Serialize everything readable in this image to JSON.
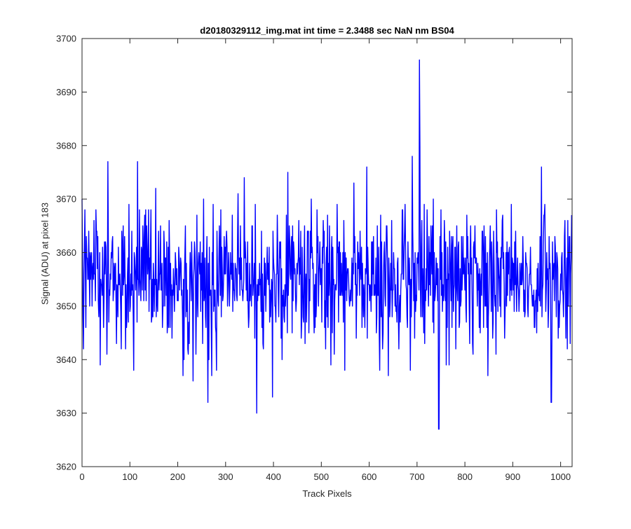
{
  "chart_data": {
    "type": "line",
    "title": "d20180329112_img.mat int time = 2.3488 sec  NaN nm BS04",
    "xlabel": "Track Pixels",
    "ylabel": "Signal (ADU) at pixel 183",
    "xlim": [
      0,
      1024
    ],
    "ylim": [
      3620,
      3700
    ],
    "xticks": [
      0,
      100,
      200,
      300,
      400,
      500,
      600,
      700,
      800,
      900,
      1000
    ],
    "yticks": [
      3620,
      3630,
      3640,
      3650,
      3660,
      3670,
      3680,
      3690,
      3700
    ],
    "grid": false,
    "series_color": "#0000ff",
    "series": [
      {
        "n_points": 1024,
        "mean": 3655,
        "noise_std": 6.5,
        "notable_points": [
          {
            "x": 705,
            "y": 3696
          },
          {
            "x": 706,
            "y": 3680
          },
          {
            "x": 745,
            "y": 3627
          },
          {
            "x": 746,
            "y": 3627
          },
          {
            "x": 365,
            "y": 3630
          },
          {
            "x": 263,
            "y": 3632
          },
          {
            "x": 980,
            "y": 3632
          },
          {
            "x": 981,
            "y": 3632
          },
          {
            "x": 398,
            "y": 3633
          },
          {
            "x": 116,
            "y": 3677
          },
          {
            "x": 54,
            "y": 3677
          },
          {
            "x": 690,
            "y": 3678
          },
          {
            "x": 960,
            "y": 3676
          },
          {
            "x": 3,
            "y": 3642
          },
          {
            "x": 430,
            "y": 3675
          },
          {
            "x": 595,
            "y": 3676
          }
        ]
      }
    ]
  }
}
